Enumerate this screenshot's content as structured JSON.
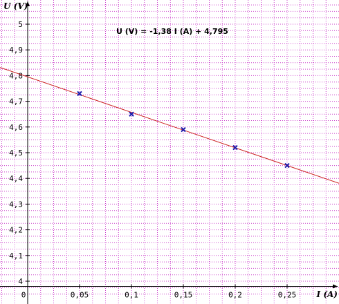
{
  "chart_data": {
    "type": "scatter",
    "title": "",
    "xlabel": "I (A)",
    "ylabel": "U (V)",
    "equation": "U (V) = -1,38 I (A) + 4,795",
    "x_ticks": [
      "0",
      "0,05",
      "0,1",
      "0,15",
      "0,2",
      "0,25"
    ],
    "y_ticks": [
      "4",
      "4,1",
      "4,2",
      "4,3",
      "4,4",
      "4,5",
      "4,6",
      "4,7",
      "4,8",
      "4,9",
      "5"
    ],
    "xlim": [
      0,
      0.3
    ],
    "ylim": [
      3.98,
      5.05
    ],
    "grid": true,
    "series": [
      {
        "marker": "x",
        "x": [
          0.05,
          0.1,
          0.15,
          0.2,
          0.25
        ],
        "y": [
          4.73,
          4.65,
          4.59,
          4.52,
          4.45
        ]
      }
    ],
    "fit_line": {
      "slope": -1.38,
      "intercept": 4.795
    },
    "colors": {
      "grid": "#cc44cc",
      "axis": "#000000",
      "fit_line": "#cc2222",
      "marker": "#1a1aaa",
      "background": "#ffffff"
    }
  }
}
